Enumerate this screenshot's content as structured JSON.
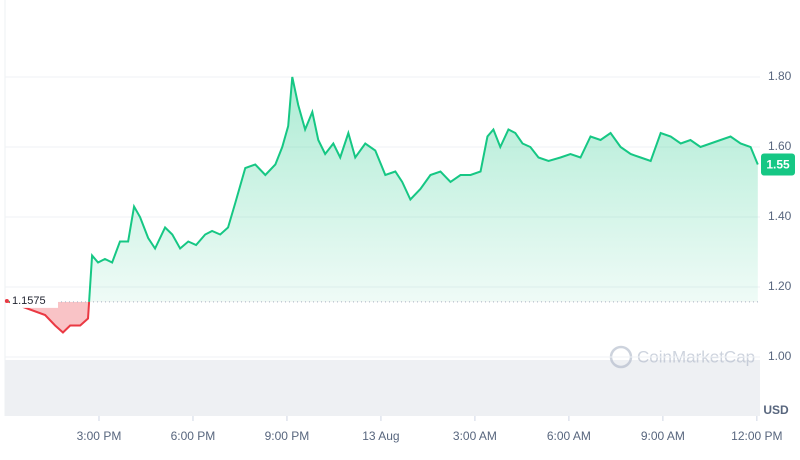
{
  "chart_data": {
    "type": "line",
    "x": [
      0.06,
      1.28,
      1.6,
      1.85,
      2.08,
      2.4,
      2.65,
      2.78,
      2.97,
      3.19,
      3.42,
      3.67,
      3.93,
      4.12,
      4.31,
      4.57,
      4.79,
      5.11,
      5.34,
      5.59,
      5.85,
      6.1,
      6.39,
      6.61,
      6.87,
      7.12,
      7.35,
      7.67,
      7.99,
      8.31,
      8.63,
      8.85,
      9.04,
      9.17,
      9.36,
      9.58,
      9.81,
      10,
      10.22,
      10.48,
      10.7,
      10.96,
      11.18,
      11.5,
      11.82,
      12.14,
      12.46,
      12.68,
      12.94,
      13.26,
      13.58,
      13.9,
      14.22,
      14.54,
      14.86,
      15.18,
      15.4,
      15.59,
      15.81,
      16.07,
      16.29,
      16.52,
      16.77,
      17.03,
      17.35,
      17.73,
      18.05,
      18.37,
      18.69,
      19.01,
      19.33,
      19.65,
      19.97,
      20.29,
      20.61,
      20.93,
      21.25,
      21.57,
      21.88,
      22.2,
      22.52,
      22.84,
      23.16,
      23.48,
      23.8,
      24.03
    ],
    "values": [
      1.16,
      1.12,
      1.09,
      1.07,
      1.09,
      1.09,
      1.11,
      1.29,
      1.27,
      1.28,
      1.27,
      1.33,
      1.33,
      1.43,
      1.4,
      1.34,
      1.31,
      1.37,
      1.35,
      1.31,
      1.33,
      1.32,
      1.35,
      1.36,
      1.35,
      1.37,
      1.44,
      1.54,
      1.55,
      1.52,
      1.55,
      1.6,
      1.66,
      1.8,
      1.72,
      1.65,
      1.7,
      1.62,
      1.58,
      1.61,
      1.57,
      1.64,
      1.57,
      1.61,
      1.59,
      1.52,
      1.53,
      1.5,
      1.45,
      1.48,
      1.52,
      1.53,
      1.5,
      1.52,
      1.52,
      1.53,
      1.63,
      1.65,
      1.6,
      1.65,
      1.64,
      1.61,
      1.6,
      1.57,
      1.56,
      1.57,
      1.58,
      1.57,
      1.63,
      1.62,
      1.64,
      1.6,
      1.58,
      1.57,
      1.56,
      1.64,
      1.63,
      1.61,
      1.62,
      1.6,
      1.61,
      1.62,
      1.63,
      1.61,
      1.6,
      1.55
    ],
    "color": "#16c784",
    "down_color": "#ea3943",
    "baseline": 1.1575,
    "xlim": [
      0,
      24.1
    ],
    "xticks": [
      {
        "value": 3,
        "label": "3:00 PM"
      },
      {
        "value": 6,
        "label": "6:00 PM"
      },
      {
        "value": 9,
        "label": "9:00 PM"
      },
      {
        "value": 12,
        "label": "13 Aug"
      },
      {
        "value": 15,
        "label": "3:00 AM"
      },
      {
        "value": 18,
        "label": "6:00 AM"
      },
      {
        "value": 21,
        "label": "9:00 AM"
      },
      {
        "value": 24,
        "label": "12:00 PM"
      }
    ],
    "ylim": [
      0.95,
      2.02
    ],
    "yticks": [
      {
        "value": 1,
        "label": "1.00"
      },
      {
        "value": 1.2,
        "label": "1.20"
      },
      {
        "value": 1.4,
        "label": "1.40"
      },
      {
        "value": 1.6,
        "label": "1.60"
      },
      {
        "value": 1.8,
        "label": "1.80"
      }
    ],
    "y_label": "USD",
    "watermark": "CoinMarketCap",
    "grid": true
  }
}
